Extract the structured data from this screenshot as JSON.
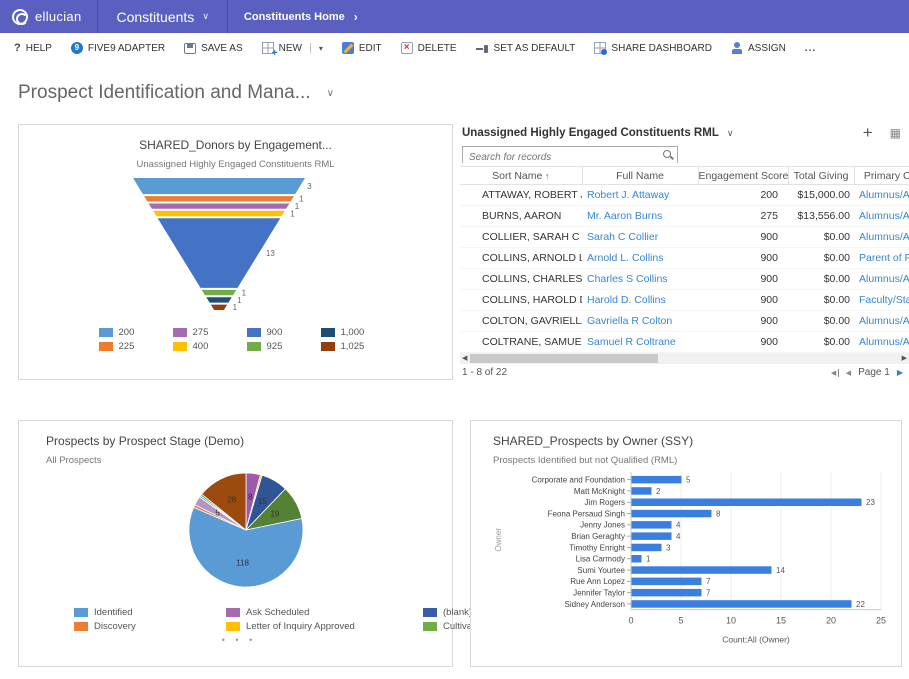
{
  "navbar": {
    "brand": "ellucian",
    "app_menu": "Constituents",
    "breadcrumb": "Constituents Home",
    "bg_color": "#5a5fc0"
  },
  "toolbar": {
    "items": [
      {
        "label": "HELP",
        "icon": "help-icon"
      },
      {
        "label": "FIVE9 ADAPTER",
        "icon": "five9-icon"
      },
      {
        "label": "SAVE AS",
        "icon": "save-icon"
      },
      {
        "label": "NEW",
        "icon": "new-icon"
      },
      {
        "label": "EDIT",
        "icon": "edit-icon"
      },
      {
        "label": "DELETE",
        "icon": "delete-icon"
      },
      {
        "label": "SET AS DEFAULT",
        "icon": "pin-icon"
      },
      {
        "label": "SHARE DASHBOARD",
        "icon": "share-icon"
      },
      {
        "label": "ASSIGN",
        "icon": "assign-icon"
      },
      {
        "label": "...",
        "icon": "more-icon"
      }
    ]
  },
  "icons": {
    "chevron_down": "∨",
    "chevron_right": "›",
    "caret_down": "▾",
    "plus": "+",
    "grid_view": "▦",
    "five9": "9",
    "sort_asc": "↑",
    "scroll_left": "◀",
    "scroll_right": "▶",
    "page_prev": "◀",
    "page_next": "▶",
    "legend_pager": "• • •"
  },
  "page": {
    "title": "Prospect Identification and Mana..."
  },
  "grid_panel": {
    "title": "Unassigned Highly Engaged Constituents RML",
    "search_placeholder": "Search for records",
    "columns": [
      "Sort Name",
      "Full Name",
      "Engagement Score...",
      "Total Giving",
      "Primary C"
    ],
    "sorted_column": "Sort Name",
    "rows": [
      {
        "sort_name": "ATTAWAY, ROBERT J.",
        "full_name": "Robert J. Attaway",
        "engagement_score": "200",
        "total_giving": "$15,000.00",
        "primary_constituency": "Alumnus/Al"
      },
      {
        "sort_name": "BURNS, AARON",
        "full_name": "Mr. Aaron Burns",
        "engagement_score": "275",
        "total_giving": "$13,556.00",
        "primary_constituency": "Alumnus/Al"
      },
      {
        "sort_name": "COLLIER, SARAH C",
        "full_name": "Sarah C Collier",
        "engagement_score": "900",
        "total_giving": "$0.00",
        "primary_constituency": "Alumnus/Al"
      },
      {
        "sort_name": "COLLINS, ARNOLD L.",
        "full_name": "Arnold L. Collins",
        "engagement_score": "900",
        "total_giving": "$0.00",
        "primary_constituency": "Parent of Pa"
      },
      {
        "sort_name": "COLLINS, CHARLES S",
        "full_name": "Charles S Collins",
        "engagement_score": "900",
        "total_giving": "$0.00",
        "primary_constituency": "Alumnus/Al"
      },
      {
        "sort_name": "COLLINS, HAROLD D.",
        "full_name": "Harold D. Collins",
        "engagement_score": "900",
        "total_giving": "$0.00",
        "primary_constituency": "Faculty/Staf"
      },
      {
        "sort_name": "COLTON, GAVRIELLA R",
        "full_name": "Gavriella R Colton",
        "engagement_score": "900",
        "total_giving": "$0.00",
        "primary_constituency": "Alumnus/Al"
      },
      {
        "sort_name": "COLTRANE, SAMUEL R",
        "full_name": "Samuel R Coltrane",
        "engagement_score": "900",
        "total_giving": "$0.00",
        "primary_constituency": "Alumnus/Al"
      }
    ],
    "record_range": "1 - 8 of 22",
    "page_label": "Page 1"
  },
  "chart_data": [
    {
      "type": "funnel",
      "title": "SHARED_Donors by Engagement...",
      "subtitle": "Unassigned Highly Engaged Constituents RML",
      "segments": [
        {
          "label": "200",
          "value": 3,
          "color": "#5B9BD5"
        },
        {
          "label": "225",
          "value": 1,
          "color": "#ED7D31"
        },
        {
          "label": "275",
          "value": 1,
          "color": "#A46CAE"
        },
        {
          "label": "400",
          "value": 1,
          "color": "#FFC000"
        },
        {
          "label": "900",
          "value": 13,
          "color": "#4472C4"
        },
        {
          "label": "925",
          "value": 1,
          "color": "#70AD47"
        },
        {
          "label": "1,000",
          "value": 1,
          "color": "#1F4E79"
        },
        {
          "label": "1,025",
          "value": 1,
          "color": "#94400E"
        }
      ],
      "legend": [
        {
          "label": "200",
          "color": "#5B9BD5"
        },
        {
          "label": "275",
          "color": "#A46CAE"
        },
        {
          "label": "900",
          "color": "#4472C4"
        },
        {
          "label": "1,000",
          "color": "#1F4E79"
        },
        {
          "label": "225",
          "color": "#ED7D31"
        },
        {
          "label": "400",
          "color": "#FFC000"
        },
        {
          "label": "925",
          "color": "#70AD47"
        },
        {
          "label": "1,025",
          "color": "#94400E"
        }
      ]
    },
    {
      "type": "pie",
      "title": "Prospects by Prospect Stage (Demo)",
      "subtitle": "All Prospects",
      "slices": [
        {
          "label": "Ask Scheduled",
          "value": 8,
          "color": "#9C5BA8"
        },
        {
          "label": "Letter of Inquiry Approved",
          "value": 1,
          "color": "#FFC000"
        },
        {
          "label": "(blank)",
          "value": 15,
          "color": "#2F5597"
        },
        {
          "label": "Cultivation",
          "value": 19,
          "color": "#548235"
        },
        {
          "label": "Identified",
          "value": 118,
          "color": "#5B9BD5"
        },
        {
          "label": "Discovery",
          "value": 1.5,
          "color": "#ED7D31"
        },
        {
          "label": "",
          "value": 5,
          "color": "#B294C7"
        },
        {
          "label": "",
          "value": 1,
          "color": "#70AD47"
        },
        {
          "label": "",
          "value": 1,
          "color": "#31859C"
        },
        {
          "label": "",
          "value": 28,
          "color": "#9C4A0D"
        }
      ],
      "legend": [
        {
          "label": "Identified",
          "color": "#5B9BD5"
        },
        {
          "label": "Ask Scheduled",
          "color": "#A46CAE"
        },
        {
          "label": "(blank)",
          "color": "#3A5BA9"
        },
        {
          "label": "Discovery",
          "color": "#ED7D31"
        },
        {
          "label": "Letter of Inquiry Approved",
          "color": "#FFC000"
        },
        {
          "label": "Cultivation",
          "color": "#70AD47"
        }
      ]
    },
    {
      "type": "bar",
      "orientation": "horizontal",
      "title": "SHARED_Prospects by Owner (SSY)",
      "subtitle": "Prospects Identified but not Qualified (RML)",
      "categories": [
        "Corporate and Foundation",
        "Matt McKnight",
        "Jim Rogers",
        "Feona Persaud Singh",
        "Jenny Jones",
        "Brian Geraghty",
        "Timothy Enright",
        "Lisa Carmody",
        "Sumi Yourtee",
        "Rue Ann Lopez",
        "Jennifer Taylor",
        "Sidney Anderson"
      ],
      "values": [
        5,
        2,
        23,
        8,
        4,
        4,
        3,
        1,
        14,
        7,
        7,
        22
      ],
      "xlabel": "Count:All (Owner)",
      "ylabel": "Owner",
      "xlim": [
        0,
        25
      ],
      "xticks": [
        0,
        5,
        10,
        15,
        20,
        25
      ],
      "bar_color": "#3A7FE0"
    }
  ]
}
